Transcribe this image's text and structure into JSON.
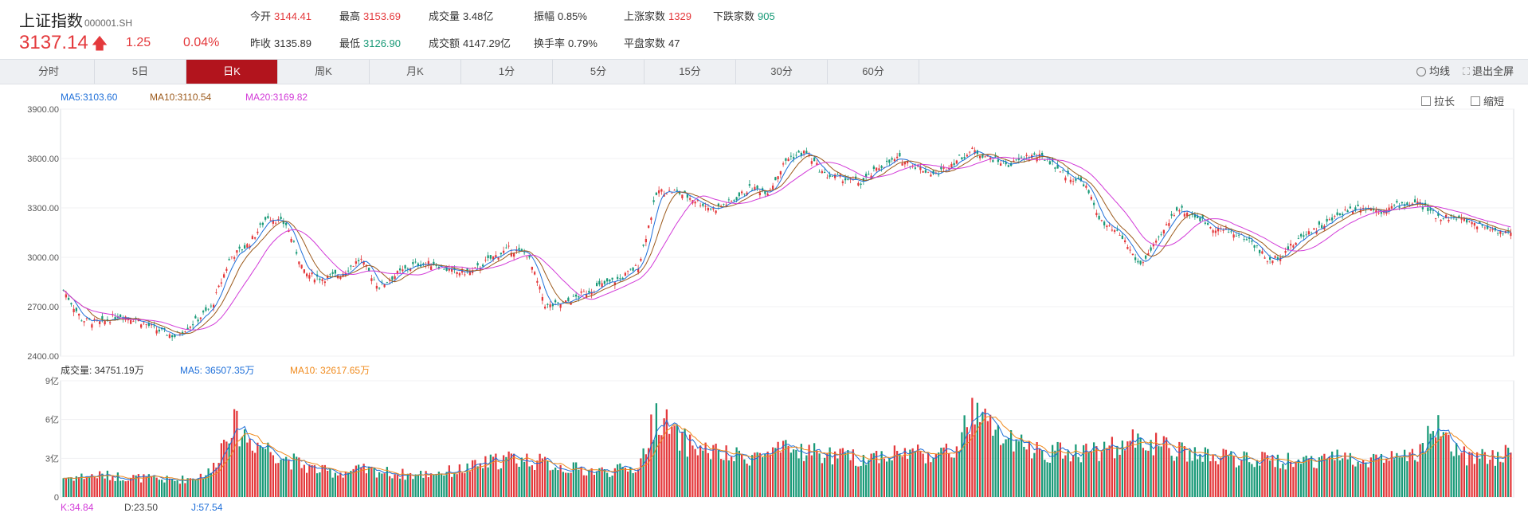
{
  "header": {
    "name": "上证指数",
    "code": "000001.SH",
    "price": "3137.14",
    "change": "1.25",
    "change_pct": "0.04%",
    "stats": [
      {
        "label": "今开",
        "value": "3144.41",
        "tone": "red"
      },
      {
        "label": "最高",
        "value": "3153.69",
        "tone": "red"
      },
      {
        "label": "成交量",
        "value": "3.48亿",
        "tone": "dark"
      },
      {
        "label": "振幅",
        "value": "0.85%",
        "tone": "dark"
      },
      {
        "label": "上涨家数",
        "value": "1329",
        "tone": "red"
      },
      {
        "label": "下跌家数",
        "value": "905",
        "tone": "green"
      },
      {
        "label": "昨收",
        "value": "3135.89",
        "tone": "dark"
      },
      {
        "label": "最低",
        "value": "3126.90",
        "tone": "green"
      },
      {
        "label": "成交额",
        "value": "4147.29亿",
        "tone": "dark"
      },
      {
        "label": "换手率",
        "value": "0.79%",
        "tone": "dark"
      },
      {
        "label": "平盘家数",
        "value": "47",
        "tone": "dark"
      }
    ]
  },
  "tabs": [
    "分时",
    "5日",
    "日K",
    "周K",
    "月K",
    "1分",
    "5分",
    "15分",
    "30分",
    "60分"
  ],
  "active_tab": "日K",
  "tools": {
    "ma": "均线",
    "exit_fullscreen": "退出全屏"
  },
  "zoom": {
    "stretch": "拉长",
    "shrink": "缩短"
  },
  "legend_price": [
    {
      "text": "MA5:3103.60",
      "color": "#1e6fd9"
    },
    {
      "text": "MA10:3110.54",
      "color": "#9c5a1c"
    },
    {
      "text": "MA20:3169.82",
      "color": "#d23ad8"
    }
  ],
  "legend_volume": [
    {
      "text": "成交量: 34751.19万",
      "color": "#333333"
    },
    {
      "text": "MA5: 36507.35万",
      "color": "#1e6fd9"
    },
    {
      "text": "MA10: 32617.65万",
      "color": "#f08a1c"
    }
  ],
  "legend_kdj": [
    {
      "text": "K:34.84",
      "color": "#d23ad8"
    },
    {
      "text": "D:23.50",
      "color": "#444444"
    },
    {
      "text": "J:57.54",
      "color": "#1e6fd9"
    }
  ],
  "colors": {
    "up": "#e4393c",
    "down": "#1a9a78",
    "ma5": "#1e6fd9",
    "ma10": "#9c5a1c",
    "ma20": "#d23ad8",
    "vma5": "#1e6fd9",
    "vma10": "#f08a1c"
  },
  "chart_data": [
    {
      "type": "candlestick",
      "title": "",
      "ylim": [
        2400,
        3900
      ],
      "yticks": [
        "2400.00",
        "2700.00",
        "3000.00",
        "3300.00",
        "3600.00",
        "3900.00"
      ],
      "ytick_values": [
        2400,
        2700,
        3000,
        3300,
        3600,
        3900
      ],
      "close_anchors": [
        2800,
        2620,
        2600,
        2650,
        2620,
        2560,
        2520,
        2600,
        2700,
        3000,
        3080,
        3250,
        3200,
        2900,
        2870,
        2900,
        2990,
        2820,
        2900,
        2960,
        2960,
        2910,
        2910,
        2990,
        3050,
        3020,
        2700,
        2720,
        2780,
        2830,
        2870,
        2950,
        3400,
        3400,
        3350,
        3290,
        3340,
        3420,
        3400,
        3600,
        3640,
        3500,
        3480,
        3450,
        3550,
        3600,
        3550,
        3500,
        3580,
        3650,
        3600,
        3560,
        3620,
        3600,
        3500,
        3450,
        3200,
        3130,
        2950,
        3100,
        3300,
        3250,
        3180,
        3150,
        3100,
        2970,
        3050,
        3150,
        3200,
        3280,
        3310,
        3280,
        3320,
        3330,
        3250,
        3240,
        3210,
        3170,
        3140
      ],
      "last_ma": {
        "ma5": 3103.6,
        "ma10": 3110.54,
        "ma20": 3169.82
      }
    },
    {
      "type": "bar",
      "title": "成交量",
      "ylim": [
        0,
        9
      ],
      "yticks": [
        "0",
        "3亿",
        "6亿",
        "9亿"
      ],
      "ytick_values": [
        0,
        3,
        6,
        9
      ],
      "unit": "亿",
      "volume_anchors": [
        1.5,
        1.6,
        1.7,
        1.6,
        1.5,
        1.4,
        1.3,
        1.5,
        2.0,
        5.8,
        4.5,
        3.8,
        3.0,
        2.4,
        2.0,
        1.9,
        2.1,
        2.0,
        1.8,
        1.7,
        1.9,
        2.0,
        2.3,
        2.7,
        3.0,
        2.9,
        2.6,
        2.3,
        2.1,
        2.0,
        2.1,
        2.3,
        6.6,
        4.6,
        3.9,
        3.5,
        3.1,
        3.2,
        3.3,
        3.6,
        3.6,
        3.3,
        3.1,
        3.0,
        3.3,
        3.4,
        3.5,
        3.3,
        3.5,
        6.5,
        5.4,
        4.2,
        3.8,
        3.5,
        3.5,
        3.6,
        3.7,
        3.9,
        4.6,
        4.0,
        3.5,
        3.3,
        3.1,
        3.0,
        2.9,
        2.8,
        2.8,
        2.9,
        3.0,
        3.1,
        3.0,
        3.0,
        3.1,
        3.1,
        5.6,
        3.4,
        3.1,
        3.0,
        3.5
      ],
      "last": {
        "volume": "34751.19万",
        "ma5": "36507.35万",
        "ma10": "32617.65万"
      }
    }
  ]
}
